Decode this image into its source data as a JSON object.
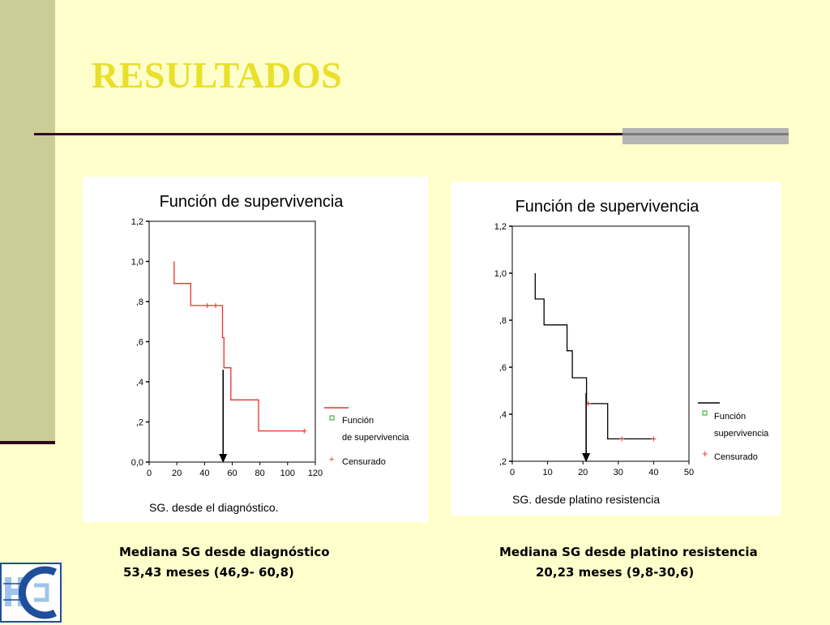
{
  "slide": {
    "title": "RESULTADOS",
    "caption_left_line1": "Mediana SG desde diagnóstico",
    "caption_left_line2": "53,43 meses (46,9- 60,8)",
    "caption_right_line1": "Mediana SG desde platino resistencia",
    "caption_right_line2": "20,23 meses (9,8-30,6)",
    "logo_icon": "hospital-logo-icon"
  },
  "chart_data": [
    {
      "type": "line",
      "title": "Función de supervivencia",
      "xlabel": "SG. desde el diagnóstico.",
      "ylabel": "",
      "xlim": [
        0,
        120
      ],
      "ylim": [
        0,
        1.2
      ],
      "x_ticks": [
        0,
        20,
        40,
        60,
        80,
        100,
        120
      ],
      "x_tick_labels": [
        "0",
        "20",
        "40",
        "60",
        "80",
        "100",
        "120"
      ],
      "y_ticks": [
        0,
        0.2,
        0.4,
        0.6,
        0.8,
        1.0,
        1.2
      ],
      "y_tick_labels": [
        "0,0",
        ",2",
        ",4",
        ",6",
        ",8",
        "1,0",
        "1,2"
      ],
      "legend": {
        "position": "right",
        "entries": [
          "Función",
          "de supervivencia",
          "Censurado"
        ]
      },
      "series": [
        {
          "color": "#E8302A",
          "step": [
            [
              18,
              1.0
            ],
            [
              18,
              0.89
            ],
            [
              30,
              0.89
            ],
            [
              30,
              0.78
            ],
            [
              53,
              0.78
            ],
            [
              53,
              0.62
            ],
            [
              54,
              0.62
            ],
            [
              54,
              0.47
            ],
            [
              59,
              0.47
            ],
            [
              59,
              0.31
            ],
            [
              79,
              0.31
            ],
            [
              79,
              0.155
            ],
            [
              112,
              0.155
            ]
          ],
          "censored": [
            [
              42,
              0.78
            ],
            [
              48,
              0.78
            ],
            [
              112,
              0.155
            ]
          ]
        }
      ],
      "median_arrow": {
        "x": 53.43,
        "y_from": 0.46,
        "y_to": 0.0
      }
    },
    {
      "type": "line",
      "title": "Función de supervivencia",
      "xlabel": "SG. desde platino resistencia",
      "ylabel": "",
      "xlim": [
        0,
        50
      ],
      "ylim": [
        0.2,
        1.2
      ],
      "x_ticks": [
        0,
        10,
        20,
        30,
        40,
        50
      ],
      "x_tick_labels": [
        "0",
        "10",
        "20",
        "30",
        "40",
        "50"
      ],
      "y_ticks": [
        0.2,
        0.4,
        0.6,
        0.8,
        1.0,
        1.2
      ],
      "y_tick_labels": [
        ",2",
        ",4",
        ",6",
        ",8",
        "1,0",
        "1,2"
      ],
      "legend": {
        "position": "right",
        "entries": [
          "Función",
          "supervivencia",
          "Censurado"
        ]
      },
      "series": [
        {
          "color": "#000000",
          "step": [
            [
              6.5,
              1.0
            ],
            [
              6.5,
              0.89
            ],
            [
              9,
              0.89
            ],
            [
              9,
              0.78
            ],
            [
              15.5,
              0.78
            ],
            [
              15.5,
              0.67
            ],
            [
              17,
              0.67
            ],
            [
              17,
              0.555
            ],
            [
              21,
              0.555
            ],
            [
              21,
              0.445
            ],
            [
              27,
              0.445
            ],
            [
              27,
              0.295
            ],
            [
              40,
              0.295
            ]
          ],
          "censored": [
            [
              21.5,
              0.445
            ],
            [
              31,
              0.295
            ],
            [
              40,
              0.295
            ]
          ]
        }
      ],
      "median_arrow": {
        "x": 20.9,
        "y_from": 0.49,
        "y_to": 0.2
      }
    }
  ]
}
